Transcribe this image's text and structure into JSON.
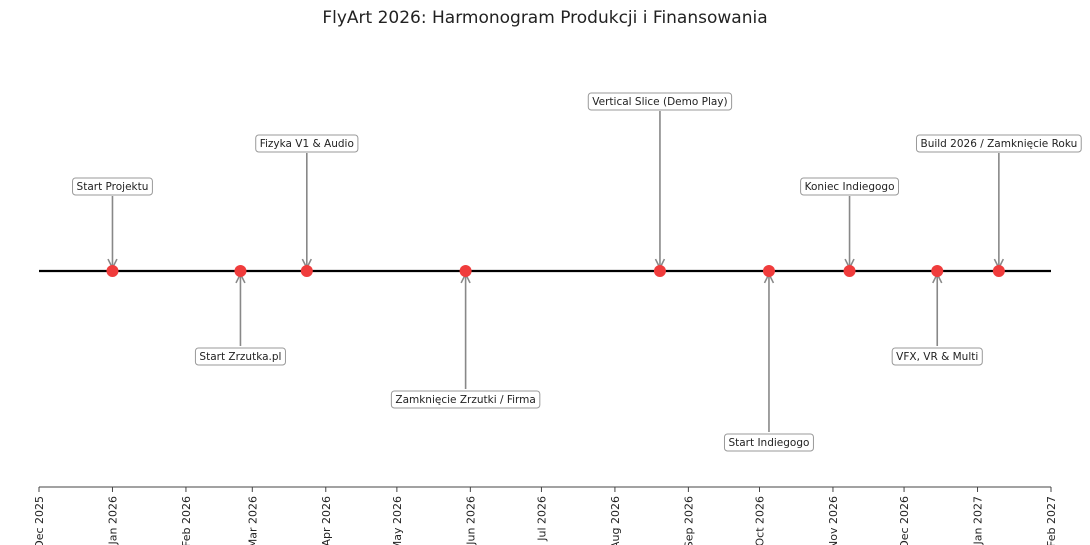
{
  "chart_data": {
    "type": "timeline",
    "title": "FlyArt 2026: Harmonogram Produkcji i Finansowania",
    "xlabel": "",
    "ylabel": "",
    "xlim": [
      "2025-12-01",
      "2027-02-01"
    ],
    "grid": false,
    "legend": null,
    "ticks": [
      "Dec 2025",
      "Jan 2026",
      "Feb 2026",
      "Mar 2026",
      "Apr 2026",
      "May 2026",
      "Jun 2026",
      "Jul 2026",
      "Aug 2026",
      "Sep 2026",
      "Oct 2026",
      "Nov 2026",
      "Dec 2026",
      "Jan 2027",
      "Feb 2027"
    ],
    "marker_color": "#f03c3c",
    "line_color": "#000000",
    "events": [
      {
        "label": "Start Projektu",
        "date": "2026-01-01",
        "level": 2
      },
      {
        "label": "Start Zrzutka.pl",
        "date": "2026-02-24",
        "level": -2
      },
      {
        "label": "Fizyka V1 & Audio",
        "date": "2026-03-24",
        "level": 3
      },
      {
        "label": "Zamknięcie Zrzutki / Firma",
        "date": "2026-05-30",
        "level": -3
      },
      {
        "label": "Vertical Slice (Demo Play)",
        "date": "2026-08-20",
        "level": 4
      },
      {
        "label": "Start Indiegogo",
        "date": "2026-10-05",
        "level": -4
      },
      {
        "label": "Koniec Indiegogo",
        "date": "2026-11-08",
        "level": 2
      },
      {
        "label": "VFX, VR & Multi",
        "date": "2026-12-15",
        "level": -2
      },
      {
        "label": "Build 2026 / Zamknięcie Roku",
        "date": "2027-01-10",
        "level": 3
      }
    ]
  }
}
